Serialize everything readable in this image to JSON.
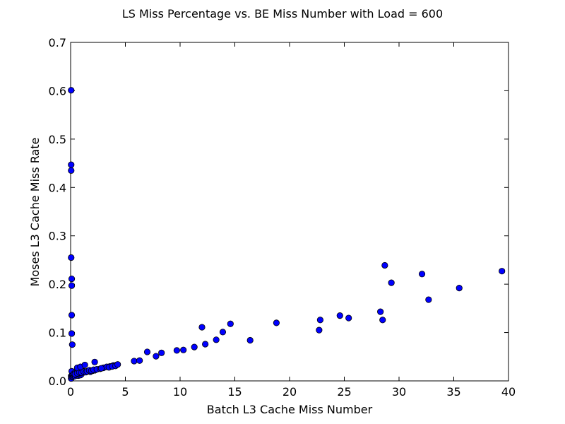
{
  "chart_data": {
    "type": "scatter",
    "title": "LS Miss Percentage vs. BE Miss Number with Load = 600",
    "xlabel": "Batch L3 Cache Miss Number",
    "ylabel": "Moses L3 Cache Miss Rate",
    "xlim": [
      0,
      40
    ],
    "ylim": [
      0,
      0.7
    ],
    "xticks": [
      0,
      5,
      10,
      15,
      20,
      25,
      30,
      35,
      40
    ],
    "yticks": [
      0.0,
      0.1,
      0.2,
      0.3,
      0.4,
      0.5,
      0.6,
      0.7
    ],
    "xtick_labels": [
      "0",
      "5",
      "10",
      "15",
      "20",
      "25",
      "30",
      "35",
      "40"
    ],
    "ytick_labels": [
      "0.0",
      "0.1",
      "0.2",
      "0.3",
      "0.4",
      "0.5",
      "0.6",
      "0.7"
    ],
    "grid": false,
    "legend": "none",
    "marker_color": "#0000ff",
    "series": [
      {
        "x": [
          0.05,
          0.05,
          0.05,
          0.05,
          0.1,
          0.1,
          0.1,
          0.1,
          0.15,
          0.1,
          0.05,
          0.05,
          0.1,
          0.15,
          0.2,
          0.25,
          0.3,
          0.35,
          0.4,
          0.5,
          0.6,
          0.7,
          0.8,
          0.9,
          1.0,
          0.3,
          0.4,
          0.5,
          0.6,
          0.7,
          0.8,
          0.9,
          1.0,
          1.1,
          1.2,
          0.4,
          0.6,
          0.8,
          1.0,
          1.2,
          1.4,
          1.6,
          1.8,
          2.0,
          2.2,
          1.5,
          1.7,
          1.9,
          2.1,
          2.4,
          2.7,
          3.0,
          3.3,
          3.6,
          3.9,
          4.2,
          0.6,
          0.9,
          1.3,
          2.2,
          2.8,
          3.5,
          3.8,
          4.1,
          4.3,
          5.8,
          6.3,
          7.0,
          7.8,
          8.3,
          9.7,
          10.3,
          11.3,
          12.3,
          12.0,
          13.3,
          13.9,
          14.6,
          16.4,
          18.8,
          22.7,
          22.8,
          24.6,
          25.4,
          28.3,
          28.5,
          28.7,
          29.3,
          32.1,
          32.7,
          35.5,
          39.4
        ],
        "y": [
          0.601,
          0.447,
          0.435,
          0.255,
          0.211,
          0.197,
          0.136,
          0.098,
          0.075,
          0.02,
          0.01,
          0.005,
          0.008,
          0.01,
          0.012,
          0.009,
          0.011,
          0.013,
          0.01,
          0.012,
          0.014,
          0.011,
          0.013,
          0.012,
          0.014,
          0.015,
          0.017,
          0.016,
          0.018,
          0.016,
          0.019,
          0.017,
          0.02,
          0.018,
          0.02,
          0.014,
          0.016,
          0.018,
          0.017,
          0.019,
          0.018,
          0.02,
          0.019,
          0.021,
          0.022,
          0.02,
          0.022,
          0.021,
          0.023,
          0.024,
          0.025,
          0.027,
          0.029,
          0.03,
          0.032,
          0.033,
          0.027,
          0.029,
          0.033,
          0.039,
          0.026,
          0.028,
          0.03,
          0.031,
          0.034,
          0.041,
          0.042,
          0.06,
          0.051,
          0.058,
          0.063,
          0.064,
          0.07,
          0.076,
          0.111,
          0.085,
          0.101,
          0.118,
          0.084,
          0.12,
          0.105,
          0.126,
          0.135,
          0.13,
          0.143,
          0.126,
          0.239,
          0.203,
          0.221,
          0.168,
          0.192,
          0.227
        ]
      }
    ]
  }
}
